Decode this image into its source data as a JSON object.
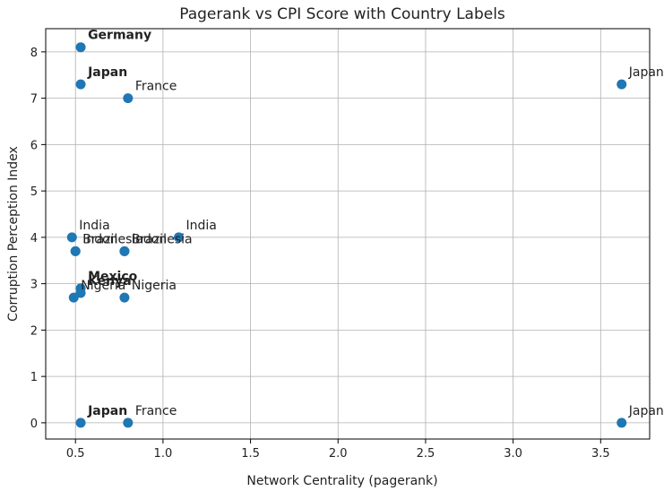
{
  "chart_data": {
    "type": "scatter",
    "title": "Pagerank vs CPI Score with Country Labels",
    "xlabel": "Network Centrality (pagerank)",
    "ylabel": "Corruption Perception Index",
    "xlim": [
      0.33,
      3.78
    ],
    "ylim": [
      -0.35,
      8.5
    ],
    "xticks": [
      0.5,
      1.0,
      1.5,
      2.0,
      2.5,
      3.0,
      3.5
    ],
    "xtick_labels": [
      "0.5",
      "1.0",
      "1.5",
      "2.0",
      "2.5",
      "3.0",
      "3.5"
    ],
    "yticks": [
      0,
      1,
      2,
      3,
      4,
      5,
      6,
      7,
      8
    ],
    "ytick_labels": [
      "0",
      "1",
      "2",
      "3",
      "4",
      "5",
      "6",
      "7",
      "8"
    ],
    "grid": true,
    "point_color": "#1f77b4",
    "points": [
      {
        "x": 0.53,
        "y": 8.1,
        "label": "Germany",
        "bold": true
      },
      {
        "x": 0.53,
        "y": 7.3,
        "label": "Japan",
        "bold": true
      },
      {
        "x": 0.8,
        "y": 7.0,
        "label": "France",
        "bold": false
      },
      {
        "x": 3.62,
        "y": 7.3,
        "label": "Japan",
        "bold": false
      },
      {
        "x": 0.48,
        "y": 4.0,
        "label": "India",
        "bold": false
      },
      {
        "x": 1.09,
        "y": 4.0,
        "label": "India",
        "bold": false
      },
      {
        "x": 0.5,
        "y": 3.7,
        "label": "Indonesia",
        "bold": false
      },
      {
        "x": 0.78,
        "y": 3.7,
        "label": "Brazil",
        "bold": false
      },
      {
        "x": 0.5,
        "y": 3.7,
        "label": "Brazil",
        "bold": false
      },
      {
        "x": 0.78,
        "y": 3.7,
        "label": "Indonesia",
        "bold": false
      },
      {
        "x": 0.53,
        "y": 2.9,
        "label": "Mexico",
        "bold": true
      },
      {
        "x": 0.53,
        "y": 2.8,
        "label": "Kenya",
        "bold": true
      },
      {
        "x": 0.49,
        "y": 2.7,
        "label": "Nigeria",
        "bold": false
      },
      {
        "x": 0.78,
        "y": 2.7,
        "label": "Nigeria",
        "bold": false
      },
      {
        "x": 0.53,
        "y": 0.0,
        "label": "Japan",
        "bold": true
      },
      {
        "x": 0.8,
        "y": 0.0,
        "label": "France",
        "bold": false
      },
      {
        "x": 3.62,
        "y": 0.0,
        "label": "Japan",
        "bold": false
      }
    ]
  }
}
